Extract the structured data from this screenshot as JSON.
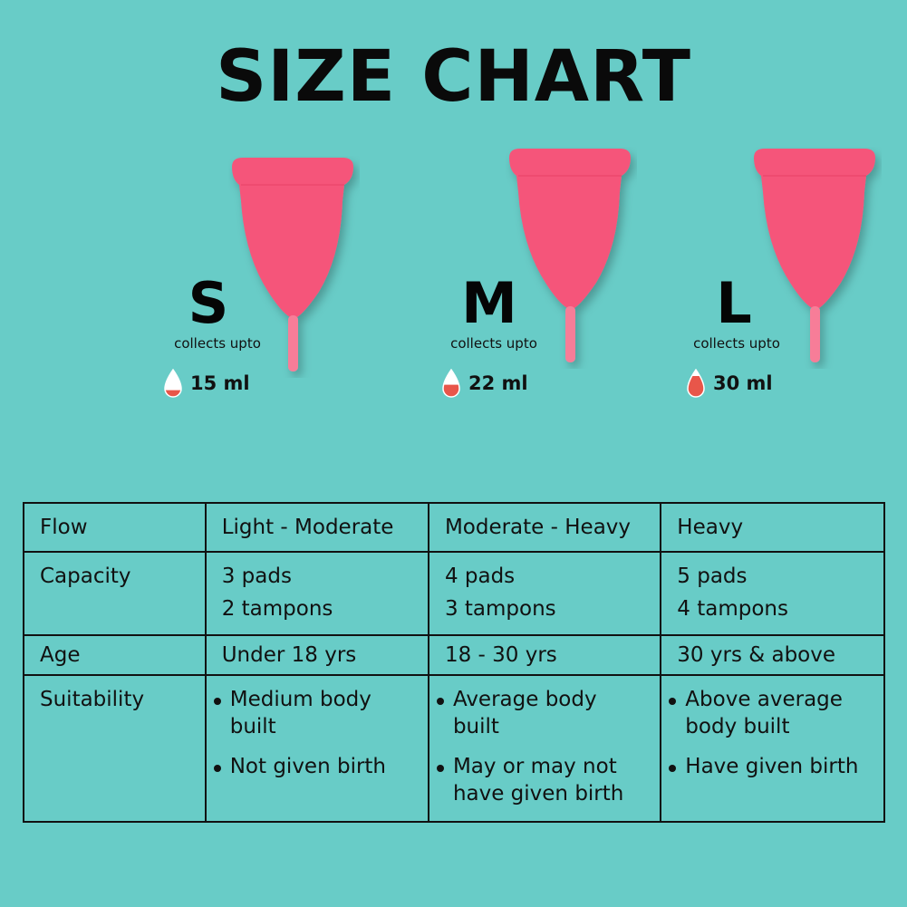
{
  "title": "SIZE CHART",
  "colors": {
    "background": "#68ccc7",
    "cup": "#f5557a",
    "drop_fill": "#e8564a"
  },
  "sizes": [
    {
      "letter": "S",
      "collects_label": "collects upto",
      "volume": "15 ml",
      "drop_fill_fraction": 0.35
    },
    {
      "letter": "M",
      "collects_label": "collects upto",
      "volume": "22 ml",
      "drop_fill_fraction": 0.6
    },
    {
      "letter": "L",
      "collects_label": "collects upto",
      "volume": "30 ml",
      "drop_fill_fraction": 1.0
    }
  ],
  "table": {
    "rows": [
      {
        "label": "Flow",
        "cells": [
          [
            "Light - Moderate"
          ],
          [
            "Moderate - Heavy"
          ],
          [
            "Heavy"
          ]
        ]
      },
      {
        "label": "Capacity",
        "cells": [
          [
            "3 pads",
            "2 tampons"
          ],
          [
            "4 pads",
            "3 tampons"
          ],
          [
            "5 pads",
            "4 tampons"
          ]
        ]
      },
      {
        "label": "Age",
        "cells": [
          [
            "Under 18 yrs"
          ],
          [
            "18 - 30 yrs"
          ],
          [
            "30 yrs & above"
          ]
        ]
      },
      {
        "label": "Suitability",
        "cells": [
          [
            "Medium body built",
            "Not given birth"
          ],
          [
            "Average body built",
            "May or may not have given birth"
          ],
          [
            "Above average body built",
            "Have given birth"
          ]
        ]
      }
    ]
  }
}
